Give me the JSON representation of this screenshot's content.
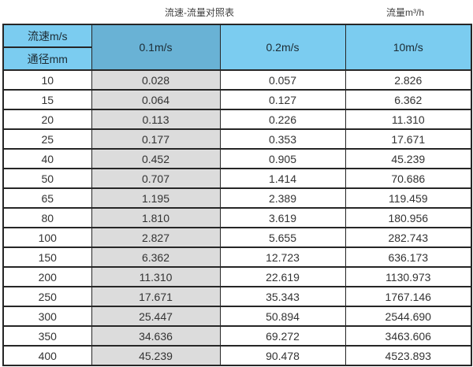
{
  "header": {
    "title": "流速-流量对照表",
    "unit_label": "流量m³/h"
  },
  "chart_data": {
    "type": "table",
    "title": "流速-流量对照表",
    "unit_note": "流量m³/h",
    "row_header_top": "流速m/s",
    "row_header_bottom": "通径mm",
    "columns": [
      "0.1m/s",
      "0.2m/s",
      "10m/s"
    ],
    "row_key_label": "通径mm",
    "rows": [
      [
        "10",
        "0.028",
        "0.057",
        "2.826"
      ],
      [
        "15",
        "0.064",
        "0.127",
        "6.362"
      ],
      [
        "20",
        "0.113",
        "0.226",
        "11.310"
      ],
      [
        "25",
        "0.177",
        "0.353",
        "17.671"
      ],
      [
        "40",
        "0.452",
        "0.905",
        "45.239"
      ],
      [
        "50",
        "0.707",
        "1.414",
        "70.686"
      ],
      [
        "65",
        "1.195",
        "2.389",
        "119.459"
      ],
      [
        "80",
        "1.810",
        "3.619",
        "180.956"
      ],
      [
        "100",
        "2.827",
        "5.655",
        "282.743"
      ],
      [
        "150",
        "6.362",
        "12.723",
        "636.173"
      ],
      [
        "200",
        "11.310",
        "22.619",
        "1130.973"
      ],
      [
        "250",
        "17.671",
        "35.343",
        "1767.146"
      ],
      [
        "300",
        "25.447",
        "50.894",
        "2544.690"
      ],
      [
        "350",
        "34.636",
        "69.272",
        "3463.606"
      ],
      [
        "400",
        "45.239",
        "90.478",
        "4523.893"
      ]
    ]
  },
  "colors": {
    "header_blue": "#7bccf0",
    "header_blue_dark": "#69b2d5",
    "gray_column": "#dcdcdc",
    "border": "#262626",
    "title_text": "#3d3d3d"
  }
}
